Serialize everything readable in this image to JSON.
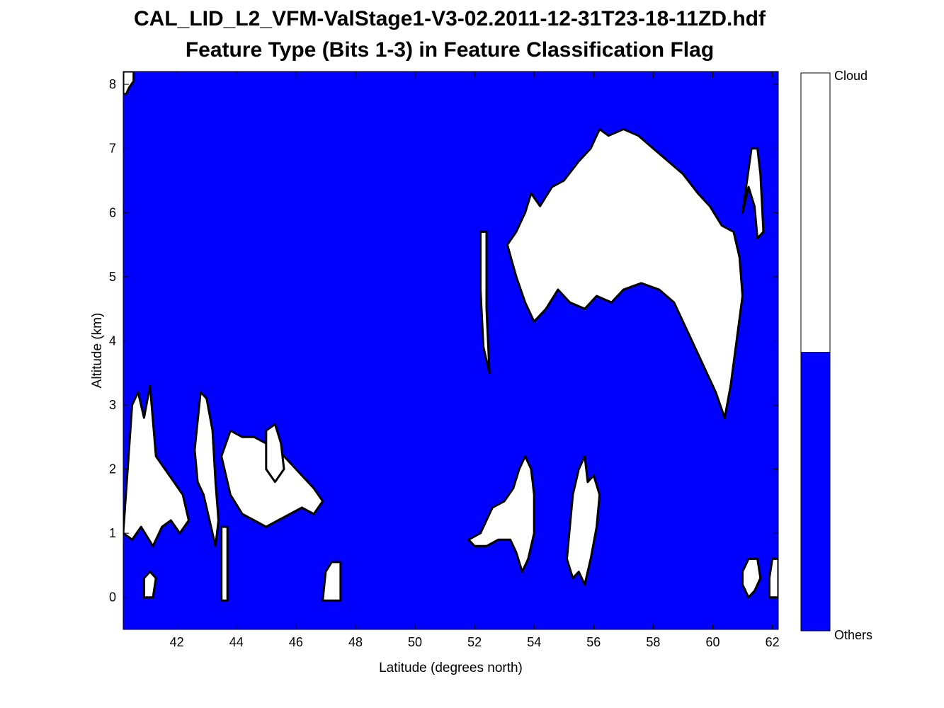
{
  "title_line1": "CAL_LID_L2_VFM-ValStage1-V3-02.2011-12-31T23-18-11ZD.hdf",
  "title_line2": "Feature Type  (Bits 1-3) in Feature Classification Flag",
  "colors": {
    "others": "#0000ff",
    "cloud": "#ffffff",
    "outline": "#000000"
  },
  "chart_data": {
    "type": "heatmap",
    "xlabel": "Latitude (degrees north)",
    "ylabel": "Altitude (km)",
    "xlim": [
      40.2,
      62.2
    ],
    "ylim": [
      -0.5,
      8.2
    ],
    "xticks": [
      42,
      44,
      46,
      48,
      50,
      52,
      54,
      56,
      58,
      60,
      62
    ],
    "yticks": [
      0,
      1,
      2,
      3,
      4,
      5,
      6,
      7,
      8
    ],
    "grid": false,
    "colorbar": {
      "placement": "right",
      "categories": [
        {
          "label": "Others",
          "color": "#0000ff",
          "fraction": 0.5
        },
        {
          "label": "Cloud",
          "color": "#ffffff",
          "fraction": 0.5
        }
      ]
    },
    "cloud_regions": [
      {
        "region": "upper-cloud-main",
        "polygon": [
          [
            53.4,
            5.7
          ],
          [
            53.7,
            6.0
          ],
          [
            53.9,
            6.3
          ],
          [
            54.2,
            6.1
          ],
          [
            54.6,
            6.4
          ],
          [
            55.0,
            6.5
          ],
          [
            55.5,
            6.8
          ],
          [
            55.9,
            7.0
          ],
          [
            56.2,
            7.3
          ],
          [
            56.5,
            7.2
          ],
          [
            57.0,
            7.3
          ],
          [
            57.5,
            7.2
          ],
          [
            58.0,
            7.0
          ],
          [
            58.5,
            6.8
          ],
          [
            59.0,
            6.6
          ],
          [
            59.5,
            6.3
          ],
          [
            59.9,
            6.1
          ],
          [
            60.3,
            5.8
          ],
          [
            60.7,
            5.7
          ],
          [
            60.9,
            5.3
          ],
          [
            61.0,
            4.7
          ],
          [
            60.8,
            4.0
          ],
          [
            60.6,
            3.3
          ],
          [
            60.4,
            2.8
          ],
          [
            60.1,
            3.2
          ],
          [
            59.7,
            3.6
          ],
          [
            59.2,
            4.1
          ],
          [
            58.7,
            4.6
          ],
          [
            58.2,
            4.8
          ],
          [
            57.6,
            4.9
          ],
          [
            57.0,
            4.8
          ],
          [
            56.6,
            4.6
          ],
          [
            56.1,
            4.7
          ],
          [
            55.7,
            4.5
          ],
          [
            55.2,
            4.6
          ],
          [
            54.8,
            4.8
          ],
          [
            54.4,
            4.5
          ],
          [
            54.0,
            4.3
          ],
          [
            53.7,
            4.6
          ],
          [
            53.4,
            5.0
          ],
          [
            53.1,
            5.5
          ]
        ]
      },
      {
        "region": "upper-cloud-left-strip",
        "polygon": [
          [
            52.2,
            5.7
          ],
          [
            52.4,
            5.7
          ],
          [
            52.4,
            4.5
          ],
          [
            52.5,
            3.5
          ],
          [
            52.3,
            3.9
          ],
          [
            52.2,
            4.8
          ]
        ]
      },
      {
        "region": "upper-cloud-right-column",
        "polygon": [
          [
            61.3,
            7.0
          ],
          [
            61.5,
            7.0
          ],
          [
            61.6,
            6.6
          ],
          [
            61.7,
            5.7
          ],
          [
            61.5,
            5.6
          ],
          [
            61.4,
            6.1
          ],
          [
            61.2,
            6.4
          ],
          [
            61.0,
            6.0
          ]
        ]
      },
      {
        "region": "low-cloud-left-block",
        "polygon": [
          [
            40.2,
            1.0
          ],
          [
            40.5,
            3.0
          ],
          [
            40.7,
            3.2
          ],
          [
            40.9,
            2.8
          ],
          [
            41.1,
            3.3
          ],
          [
            41.3,
            2.2
          ],
          [
            41.6,
            2.0
          ],
          [
            41.9,
            1.8
          ],
          [
            42.2,
            1.6
          ],
          [
            42.4,
            1.2
          ],
          [
            42.1,
            1.0
          ],
          [
            41.8,
            1.2
          ],
          [
            41.5,
            1.1
          ],
          [
            41.2,
            0.8
          ],
          [
            40.8,
            1.1
          ],
          [
            40.5,
            0.9
          ]
        ]
      },
      {
        "region": "low-cloud-column-43",
        "polygon": [
          [
            42.6,
            2.3
          ],
          [
            42.8,
            3.2
          ],
          [
            43.0,
            3.1
          ],
          [
            43.2,
            2.6
          ],
          [
            43.3,
            1.8
          ],
          [
            43.4,
            1.2
          ],
          [
            43.3,
            0.8
          ],
          [
            43.1,
            1.2
          ],
          [
            42.9,
            1.6
          ],
          [
            42.7,
            1.8
          ]
        ]
      },
      {
        "region": "low-cloud-mid-band",
        "polygon": [
          [
            43.5,
            2.2
          ],
          [
            43.8,
            2.6
          ],
          [
            44.2,
            2.5
          ],
          [
            44.6,
            2.5
          ],
          [
            45.0,
            2.4
          ],
          [
            45.4,
            2.3
          ],
          [
            45.8,
            2.1
          ],
          [
            46.2,
            1.9
          ],
          [
            46.6,
            1.7
          ],
          [
            46.9,
            1.5
          ],
          [
            46.6,
            1.3
          ],
          [
            46.2,
            1.4
          ],
          [
            45.8,
            1.3
          ],
          [
            45.4,
            1.2
          ],
          [
            45.0,
            1.1
          ],
          [
            44.6,
            1.2
          ],
          [
            44.2,
            1.3
          ],
          [
            43.8,
            1.6
          ]
        ]
      },
      {
        "region": "low-cloud-45-lobe",
        "polygon": [
          [
            45.0,
            2.6
          ],
          [
            45.3,
            2.7
          ],
          [
            45.5,
            2.4
          ],
          [
            45.6,
            2.0
          ],
          [
            45.3,
            1.8
          ],
          [
            45.0,
            2.0
          ]
        ]
      },
      {
        "region": "low-cloud-ground-43.5",
        "polygon": [
          [
            43.5,
            -0.05
          ],
          [
            43.7,
            -0.05
          ],
          [
            43.7,
            1.1
          ],
          [
            43.5,
            1.1
          ]
        ]
      },
      {
        "region": "low-cloud-ground-47",
        "polygon": [
          [
            46.9,
            -0.05
          ],
          [
            47.5,
            -0.05
          ],
          [
            47.5,
            0.55
          ],
          [
            47.2,
            0.55
          ],
          [
            47.0,
            0.4
          ]
        ]
      },
      {
        "region": "low-cloud-ground-41",
        "polygon": [
          [
            40.9,
            0.0
          ],
          [
            41.2,
            0.0
          ],
          [
            41.3,
            0.3
          ],
          [
            41.1,
            0.4
          ],
          [
            40.9,
            0.3
          ]
        ]
      },
      {
        "region": "low-cloud-53",
        "polygon": [
          [
            51.8,
            0.9
          ],
          [
            52.2,
            1.0
          ],
          [
            52.6,
            1.4
          ],
          [
            53.0,
            1.5
          ],
          [
            53.3,
            1.7
          ],
          [
            53.5,
            2.0
          ],
          [
            53.7,
            2.2
          ],
          [
            53.9,
            2.0
          ],
          [
            54.0,
            1.6
          ],
          [
            54.0,
            1.0
          ],
          [
            53.8,
            0.6
          ],
          [
            53.6,
            0.4
          ],
          [
            53.4,
            0.7
          ],
          [
            53.2,
            0.9
          ],
          [
            52.8,
            0.9
          ],
          [
            52.4,
            0.8
          ],
          [
            52.0,
            0.8
          ]
        ]
      },
      {
        "region": "low-cloud-55.5",
        "polygon": [
          [
            55.1,
            0.6
          ],
          [
            55.3,
            1.6
          ],
          [
            55.5,
            2.0
          ],
          [
            55.7,
            2.2
          ],
          [
            55.8,
            1.8
          ],
          [
            56.0,
            1.9
          ],
          [
            56.2,
            1.6
          ],
          [
            56.1,
            1.1
          ],
          [
            55.9,
            0.6
          ],
          [
            55.7,
            0.2
          ],
          [
            55.5,
            0.4
          ],
          [
            55.3,
            0.3
          ]
        ]
      },
      {
        "region": "low-cloud-ground-60.5",
        "polygon": [
          [
            61.0,
            0.4
          ],
          [
            61.2,
            0.6
          ],
          [
            61.5,
            0.6
          ],
          [
            61.6,
            0.3
          ],
          [
            61.4,
            0.1
          ],
          [
            61.2,
            0.0
          ],
          [
            61.0,
            0.2
          ]
        ]
      },
      {
        "region": "low-cloud-ground-62",
        "polygon": [
          [
            61.9,
            0.0
          ],
          [
            62.2,
            0.0
          ],
          [
            62.2,
            0.6
          ],
          [
            62.0,
            0.6
          ],
          [
            61.9,
            0.3
          ]
        ]
      },
      {
        "region": "top-left-corner",
        "polygon": [
          [
            40.2,
            7.85
          ],
          [
            40.2,
            8.2
          ],
          [
            40.55,
            8.2
          ],
          [
            40.55,
            8.05
          ],
          [
            40.4,
            7.95
          ],
          [
            40.3,
            7.85
          ]
        ]
      }
    ]
  }
}
